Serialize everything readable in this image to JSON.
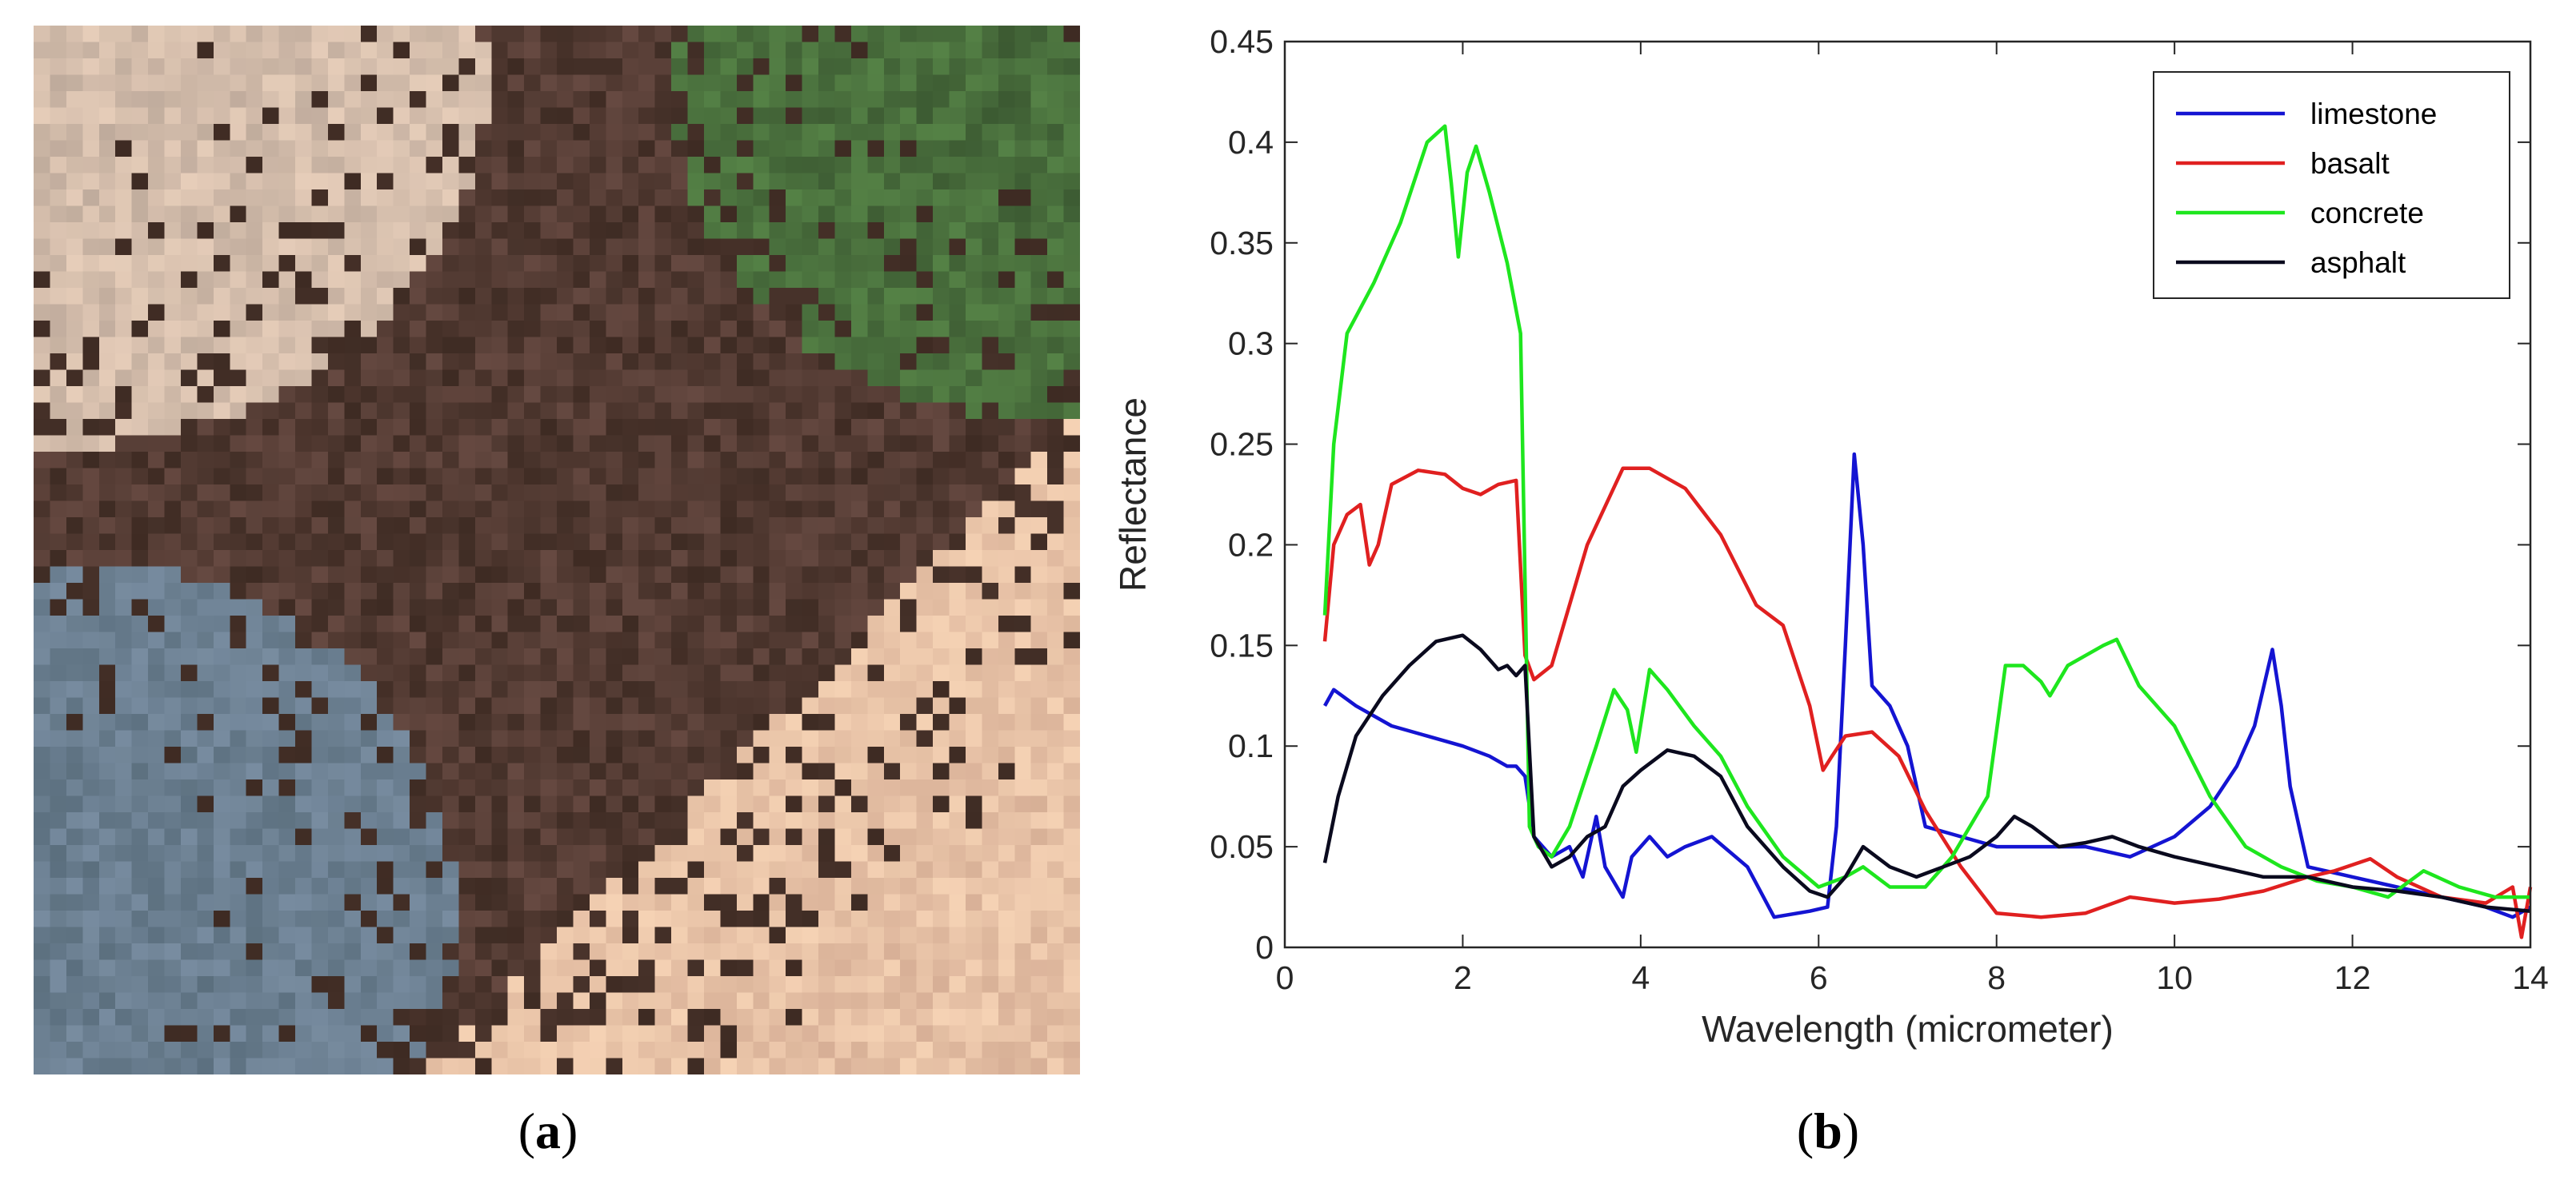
{
  "captions": {
    "a": "a",
    "b": "b"
  },
  "image_panel": {
    "description_icon": "aerial-pixel-image-icon"
  },
  "colors": {
    "limestone": "#1414d2",
    "basalt": "#e02020",
    "concrete": "#1ee61e",
    "asphalt": "#0a0a1e",
    "axis": "#262626"
  },
  "chart_data": {
    "type": "line",
    "title": "",
    "xlabel": "Wavelength (micrometer)",
    "ylabel": "Reflectance",
    "xlim": [
      0,
      14
    ],
    "ylim": [
      0,
      0.45
    ],
    "xticks": [
      "0",
      "2",
      "4",
      "6",
      "8",
      "10",
      "12",
      "14"
    ],
    "yticks": [
      "0",
      "0.05",
      "0.1",
      "0.15",
      "0.2",
      "0.25",
      "0.3",
      "0.35",
      "0.4",
      "0.45"
    ],
    "legend_position": "top-right",
    "series": [
      {
        "name": "limestone",
        "x": [
          0.45,
          0.55,
          0.8,
          1.2,
          1.6,
          2.0,
          2.3,
          2.5,
          2.6,
          2.7,
          2.8,
          3.0,
          3.2,
          3.35,
          3.5,
          3.6,
          3.8,
          3.9,
          4.1,
          4.3,
          4.5,
          4.8,
          5.2,
          5.5,
          5.9,
          6.1,
          6.2,
          6.3,
          6.4,
          6.5,
          6.6,
          6.8,
          7.0,
          7.2,
          7.6,
          8.0,
          8.5,
          9.0,
          9.5,
          10.0,
          10.4,
          10.7,
          10.9,
          11.1,
          11.2,
          11.3,
          11.5,
          12.0,
          12.5,
          13.0,
          13.5,
          13.8,
          14.0
        ],
        "y": [
          0.12,
          0.128,
          0.12,
          0.11,
          0.105,
          0.1,
          0.095,
          0.09,
          0.09,
          0.085,
          0.055,
          0.045,
          0.05,
          0.035,
          0.065,
          0.04,
          0.025,
          0.045,
          0.055,
          0.045,
          0.05,
          0.055,
          0.04,
          0.015,
          0.018,
          0.02,
          0.06,
          0.15,
          0.245,
          0.2,
          0.13,
          0.12,
          0.1,
          0.06,
          0.055,
          0.05,
          0.05,
          0.05,
          0.045,
          0.055,
          0.07,
          0.09,
          0.11,
          0.148,
          0.12,
          0.08,
          0.04,
          0.035,
          0.03,
          0.025,
          0.02,
          0.015,
          0.02
        ]
      },
      {
        "name": "basalt",
        "x": [
          0.45,
          0.55,
          0.7,
          0.85,
          0.95,
          1.05,
          1.2,
          1.5,
          1.8,
          2.0,
          2.2,
          2.4,
          2.6,
          2.7,
          2.8,
          3.0,
          3.4,
          3.8,
          4.1,
          4.5,
          4.9,
          5.3,
          5.6,
          5.9,
          6.05,
          6.15,
          6.3,
          6.6,
          6.9,
          7.2,
          7.6,
          8.0,
          8.5,
          9.0,
          9.5,
          10.0,
          10.5,
          11.0,
          11.5,
          11.8,
          12.2,
          12.5,
          13.0,
          13.5,
          13.8,
          13.9,
          14.0
        ],
        "y": [
          0.152,
          0.2,
          0.215,
          0.22,
          0.19,
          0.2,
          0.23,
          0.237,
          0.235,
          0.228,
          0.225,
          0.23,
          0.232,
          0.145,
          0.133,
          0.14,
          0.2,
          0.238,
          0.238,
          0.228,
          0.205,
          0.17,
          0.16,
          0.12,
          0.088,
          0.095,
          0.105,
          0.107,
          0.095,
          0.068,
          0.04,
          0.017,
          0.015,
          0.017,
          0.025,
          0.022,
          0.024,
          0.028,
          0.035,
          0.038,
          0.044,
          0.035,
          0.025,
          0.022,
          0.03,
          0.005,
          0.03
        ]
      },
      {
        "name": "concrete",
        "x": [
          0.45,
          0.55,
          0.7,
          1.0,
          1.3,
          1.6,
          1.8,
          1.87,
          1.95,
          2.05,
          2.15,
          2.3,
          2.5,
          2.65,
          2.75,
          2.85,
          3.0,
          3.2,
          3.5,
          3.7,
          3.85,
          3.95,
          4.1,
          4.3,
          4.6,
          4.9,
          5.2,
          5.6,
          6.0,
          6.3,
          6.5,
          6.8,
          7.2,
          7.5,
          7.9,
          8.1,
          8.3,
          8.5,
          8.6,
          8.8,
          9.0,
          9.2,
          9.35,
          9.6,
          10.0,
          10.4,
          10.8,
          11.2,
          11.6,
          12.0,
          12.4,
          12.8,
          13.2,
          13.6,
          14.0
        ],
        "y": [
          0.165,
          0.25,
          0.305,
          0.33,
          0.36,
          0.4,
          0.408,
          0.38,
          0.343,
          0.385,
          0.398,
          0.375,
          0.34,
          0.305,
          0.06,
          0.05,
          0.045,
          0.06,
          0.1,
          0.128,
          0.118,
          0.097,
          0.138,
          0.128,
          0.11,
          0.095,
          0.07,
          0.045,
          0.03,
          0.035,
          0.04,
          0.03,
          0.03,
          0.045,
          0.075,
          0.14,
          0.14,
          0.132,
          0.125,
          0.14,
          0.145,
          0.15,
          0.153,
          0.13,
          0.11,
          0.075,
          0.05,
          0.04,
          0.033,
          0.03,
          0.025,
          0.038,
          0.03,
          0.025,
          0.025
        ]
      },
      {
        "name": "asphalt",
        "x": [
          0.45,
          0.6,
          0.8,
          1.1,
          1.4,
          1.7,
          2.0,
          2.2,
          2.4,
          2.5,
          2.6,
          2.7,
          2.8,
          3.0,
          3.2,
          3.4,
          3.6,
          3.8,
          4.0,
          4.3,
          4.6,
          4.9,
          5.2,
          5.6,
          5.9,
          6.1,
          6.3,
          6.5,
          6.8,
          7.1,
          7.4,
          7.7,
          8.0,
          8.2,
          8.4,
          8.7,
          9.0,
          9.3,
          9.6,
          10.0,
          10.5,
          11.0,
          11.5,
          12.0,
          12.5,
          13.0,
          13.5,
          14.0
        ],
        "y": [
          0.042,
          0.075,
          0.105,
          0.125,
          0.14,
          0.152,
          0.155,
          0.148,
          0.138,
          0.14,
          0.135,
          0.14,
          0.055,
          0.04,
          0.045,
          0.055,
          0.06,
          0.08,
          0.088,
          0.098,
          0.095,
          0.085,
          0.06,
          0.04,
          0.028,
          0.025,
          0.035,
          0.05,
          0.04,
          0.035,
          0.04,
          0.045,
          0.055,
          0.065,
          0.06,
          0.05,
          0.052,
          0.055,
          0.05,
          0.045,
          0.04,
          0.035,
          0.035,
          0.03,
          0.028,
          0.025,
          0.02,
          0.018
        ]
      }
    ]
  }
}
